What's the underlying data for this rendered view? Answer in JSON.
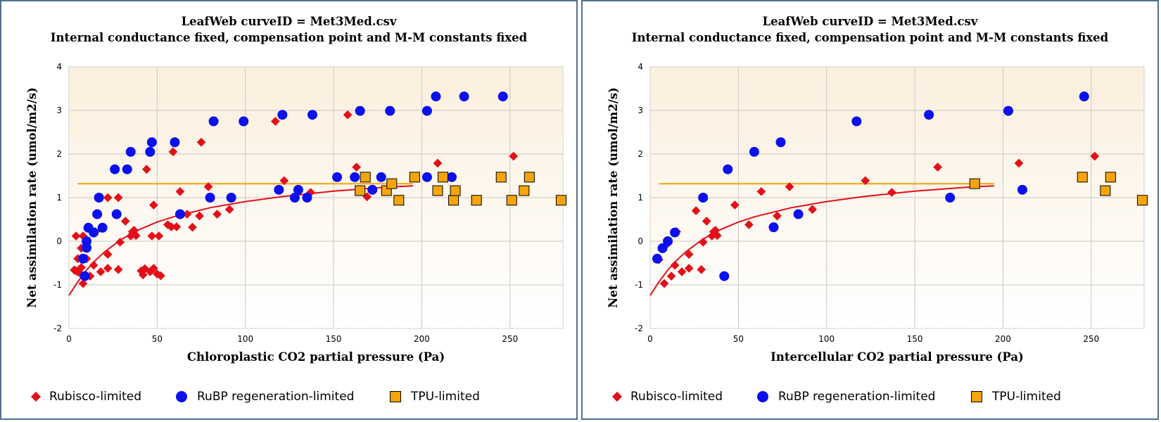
{
  "colors": {
    "rubisco": "#e31019",
    "rubp": "#0a10ee",
    "tpu": "#f5a40a",
    "fit_curve": "#e31019",
    "tpu_line": "#f5a40a"
  },
  "chart_data": [
    {
      "type": "scatter",
      "title": "LeafWeb curveID = Met3Med.csv",
      "subtitle": "Internal conductance fixed, compensation point and M-M constants fixed",
      "xlabel": "Chloroplastic CO2 partial pressure (Pa)",
      "ylabel": "Net assimilation rate (umol/m2/s)",
      "xlim": [
        0,
        280
      ],
      "ylim": [
        -2,
        4
      ],
      "xticks": [
        0,
        50,
        100,
        150,
        200,
        250
      ],
      "yticks": [
        -2,
        -1,
        0,
        1,
        2,
        3,
        4
      ],
      "grid": true,
      "legend_position": "bottom",
      "series": [
        {
          "name": "Rubisco-limited",
          "marker": "diamond",
          "points": [
            [
              3,
              -0.66
            ],
            [
              4,
              -0.68
            ],
            [
              4,
              0.12
            ],
            [
              5,
              -0.4
            ],
            [
              5,
              -0.7
            ],
            [
              6,
              -0.72
            ],
            [
              7,
              -0.6
            ],
            [
              7,
              -0.16
            ],
            [
              8,
              0.12
            ],
            [
              8,
              -0.97
            ],
            [
              9,
              -0.8
            ],
            [
              10,
              -0.4
            ],
            [
              12,
              -0.8
            ],
            [
              14,
              -0.55
            ],
            [
              15,
              0.22
            ],
            [
              18,
              -0.7
            ],
            [
              22,
              -0.3
            ],
            [
              22,
              -0.62
            ],
            [
              22,
              1.0
            ],
            [
              28,
              -0.65
            ],
            [
              28,
              1.0
            ],
            [
              29,
              -0.02
            ],
            [
              32,
              0.46
            ],
            [
              35,
              0.12
            ],
            [
              36,
              0.22
            ],
            [
              37,
              0.25
            ],
            [
              38,
              0.13
            ],
            [
              41,
              -0.68
            ],
            [
              42,
              -0.77
            ],
            [
              43,
              -0.63
            ],
            [
              44,
              1.65
            ],
            [
              46,
              -0.7
            ],
            [
              47,
              0.12
            ],
            [
              48,
              -0.62
            ],
            [
              48,
              0.83
            ],
            [
              50,
              -0.75
            ],
            [
              51,
              0.12
            ],
            [
              52,
              -0.79
            ],
            [
              56,
              0.38
            ],
            [
              58,
              0.33
            ],
            [
              59,
              2.05
            ],
            [
              61,
              0.33
            ],
            [
              63,
              1.14
            ],
            [
              67,
              0.62
            ],
            [
              70,
              0.32
            ],
            [
              74,
              0.58
            ],
            [
              75,
              2.27
            ],
            [
              79,
              1.25
            ],
            [
              84,
              0.62
            ],
            [
              91,
              0.73
            ],
            [
              117,
              2.75
            ],
            [
              122,
              1.39
            ],
            [
              137,
              1.12
            ],
            [
              158,
              2.9
            ],
            [
              163,
              1.7
            ],
            [
              169,
              1.02
            ],
            [
              209,
              1.79
            ],
            [
              252,
              1.95
            ]
          ]
        },
        {
          "name": "RuBP regeneration-limited",
          "marker": "circle",
          "points": [
            [
              8,
              -0.4
            ],
            [
              9,
              -0.8
            ],
            [
              10,
              -0.15
            ],
            [
              10,
              0.0
            ],
            [
              11,
              0.31
            ],
            [
              14,
              0.2
            ],
            [
              16,
              0.62
            ],
            [
              17,
              1.0
            ],
            [
              19,
              0.31
            ],
            [
              26,
              1.65
            ],
            [
              27,
              0.62
            ],
            [
              33,
              1.65
            ],
            [
              35,
              2.05
            ],
            [
              46,
              2.05
            ],
            [
              47,
              2.27
            ],
            [
              60,
              2.27
            ],
            [
              63,
              0.62
            ],
            [
              80,
              1.0
            ],
            [
              82,
              2.75
            ],
            [
              92,
              1.0
            ],
            [
              99,
              2.75
            ],
            [
              119,
              1.18
            ],
            [
              121,
              2.9
            ],
            [
              128,
              1.0
            ],
            [
              130,
              1.18
            ],
            [
              135,
              1.0
            ],
            [
              138,
              2.9
            ],
            [
              152,
              1.47
            ],
            [
              162,
              1.47
            ],
            [
              165,
              2.99
            ],
            [
              172,
              1.18
            ],
            [
              177,
              1.47
            ],
            [
              182,
              2.99
            ],
            [
              203,
              1.47
            ],
            [
              203,
              2.99
            ],
            [
              208,
              3.32
            ],
            [
              217,
              1.47
            ],
            [
              224,
              3.32
            ],
            [
              246,
              3.32
            ]
          ]
        },
        {
          "name": "TPU-limited",
          "marker": "square",
          "points": [
            [
              165,
              1.16
            ],
            [
              168,
              1.47
            ],
            [
              180,
              1.16
            ],
            [
              183,
              1.32
            ],
            [
              187,
              0.94
            ],
            [
              196,
              1.47
            ],
            [
              209,
              1.16
            ],
            [
              212,
              1.47
            ],
            [
              218,
              0.94
            ],
            [
              219,
              1.16
            ],
            [
              231,
              0.94
            ],
            [
              245,
              1.47
            ],
            [
              251,
              0.94
            ],
            [
              258,
              1.16
            ],
            [
              261,
              1.47
            ],
            [
              279,
              0.94
            ]
          ]
        }
      ],
      "lines": [
        {
          "role": "fit",
          "x": [
            0,
            5,
            10,
            15,
            20,
            30,
            40,
            50,
            60,
            80,
            100,
            120,
            150,
            180,
            195
          ],
          "y": [
            -1.24,
            -0.93,
            -0.66,
            -0.44,
            -0.25,
            0.05,
            0.27,
            0.44,
            0.57,
            0.77,
            0.91,
            1.02,
            1.15,
            1.24,
            1.27
          ]
        },
        {
          "role": "tpu",
          "x": [
            5,
            195
          ],
          "y": [
            1.32,
            1.32
          ]
        }
      ]
    },
    {
      "type": "scatter",
      "title": "LeafWeb curveID = Met3Med.csv",
      "subtitle": "Internal conductance fixed, compensation point and M-M constants fixed",
      "xlabel": "Intercellular CO2 partial pressure (Pa)",
      "ylabel": "Net assimilation rate (umol/m2/s)",
      "xlim": [
        0,
        280
      ],
      "ylim": [
        -2,
        4
      ],
      "xticks": [
        0,
        50,
        100,
        150,
        200,
        250
      ],
      "yticks": [
        -2,
        -1,
        0,
        1,
        2,
        3,
        4
      ],
      "grid": true,
      "legend_position": "bottom",
      "series": [
        {
          "name": "Rubisco-limited",
          "marker": "diamond",
          "points": [
            [
              5,
              -0.42
            ],
            [
              8,
              -0.97
            ],
            [
              10,
              -0.05
            ],
            [
              12,
              -0.8
            ],
            [
              14,
              -0.55
            ],
            [
              15,
              0.22
            ],
            [
              18,
              -0.7
            ],
            [
              22,
              -0.3
            ],
            [
              22,
              -0.62
            ],
            [
              26,
              0.7
            ],
            [
              29,
              -0.65
            ],
            [
              30,
              -0.02
            ],
            [
              32,
              0.46
            ],
            [
              35,
              0.12
            ],
            [
              36,
              0.22
            ],
            [
              37,
              0.25
            ],
            [
              38,
              0.13
            ],
            [
              48,
              0.83
            ],
            [
              56,
              0.38
            ],
            [
              63,
              1.14
            ],
            [
              72,
              0.58
            ],
            [
              79,
              1.25
            ],
            [
              92,
              0.73
            ],
            [
              122,
              1.39
            ],
            [
              137,
              1.12
            ],
            [
              163,
              1.7
            ],
            [
              209,
              1.79
            ],
            [
              252,
              1.95
            ]
          ]
        },
        {
          "name": "RuBP regeneration-limited",
          "marker": "circle",
          "points": [
            [
              4,
              -0.4
            ],
            [
              7,
              -0.16
            ],
            [
              10,
              0.0
            ],
            [
              14,
              0.2
            ],
            [
              30,
              1.0
            ],
            [
              42,
              -0.8
            ],
            [
              44,
              1.65
            ],
            [
              59,
              2.05
            ],
            [
              70,
              0.32
            ],
            [
              74,
              2.27
            ],
            [
              84,
              0.62
            ],
            [
              117,
              2.75
            ],
            [
              158,
              2.9
            ],
            [
              170,
              1.0
            ],
            [
              203,
              2.99
            ],
            [
              211,
              1.18
            ],
            [
              246,
              3.32
            ]
          ]
        },
        {
          "name": "TPU-limited",
          "marker": "square",
          "points": [
            [
              184,
              1.32
            ],
            [
              245,
              1.47
            ],
            [
              258,
              1.16
            ],
            [
              261,
              1.47
            ],
            [
              279,
              0.94
            ]
          ]
        }
      ],
      "lines": [
        {
          "role": "fit",
          "x": [
            0,
            5,
            10,
            15,
            20,
            30,
            40,
            50,
            60,
            80,
            100,
            120,
            150,
            180,
            195
          ],
          "y": [
            -1.24,
            -0.93,
            -0.66,
            -0.44,
            -0.25,
            0.05,
            0.27,
            0.44,
            0.57,
            0.77,
            0.91,
            1.02,
            1.15,
            1.24,
            1.27
          ]
        },
        {
          "role": "tpu",
          "x": [
            5,
            195
          ],
          "y": [
            1.32,
            1.32
          ]
        }
      ]
    }
  ]
}
